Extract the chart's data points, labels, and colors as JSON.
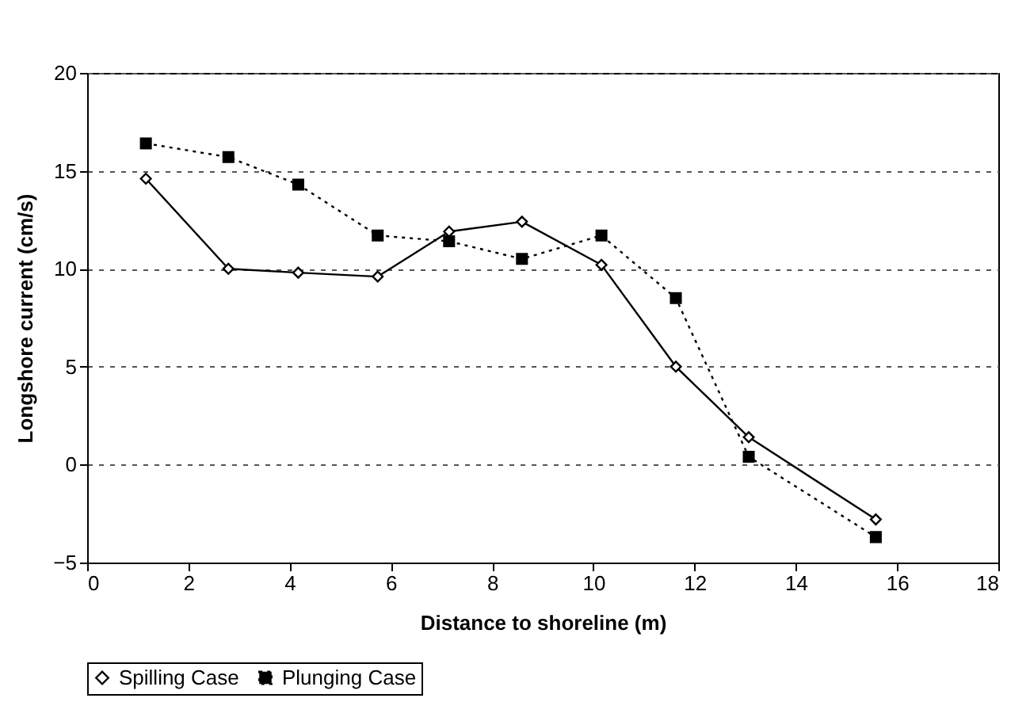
{
  "chart_data": {
    "type": "line",
    "xlabel": "Distance to shoreline (m)",
    "ylabel": "Longshore current (cm/s)",
    "xlim": [
      0,
      18
    ],
    "xticks": [
      0,
      2,
      4,
      6,
      8,
      10,
      12,
      14,
      16,
      18
    ],
    "ylim": [
      -5,
      20
    ],
    "yticks": [
      -5,
      0,
      5,
      10,
      15,
      20
    ],
    "grid": "y",
    "legend": "bottom",
    "series": [
      {
        "name": "Spilling Case",
        "color": "#000000",
        "marker": "diamond",
        "line_style": "solid",
        "x": [
          1.16,
          2.79,
          4.17,
          5.74,
          7.15,
          8.59,
          10.16,
          11.63,
          13.07,
          15.58
        ],
        "values": [
          14.6,
          10.0,
          9.8,
          9.6,
          11.9,
          12.4,
          10.2,
          5.0,
          1.4,
          -2.8
        ]
      },
      {
        "name": "Plunging Case",
        "color": "#000000",
        "marker": "square",
        "line_style": "dotted",
        "x": [
          1.16,
          2.79,
          4.17,
          5.74,
          7.15,
          8.59,
          10.16,
          11.63,
          13.07,
          15.58
        ],
        "values": [
          16.4,
          15.7,
          14.3,
          11.7,
          11.4,
          10.5,
          11.7,
          8.5,
          0.4,
          -3.7
        ]
      }
    ]
  }
}
